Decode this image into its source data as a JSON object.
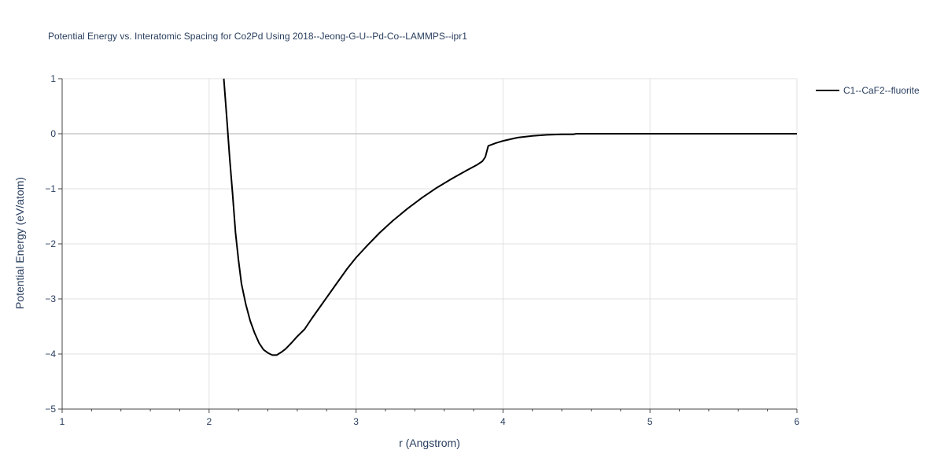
{
  "chart_data": {
    "type": "line",
    "title": "Potential Energy vs. Interatomic Spacing for Co2Pd Using 2018--Jeong-G-U--Pd-Co--LAMMPS--ipr1",
    "xlabel": "r (Angstrom)",
    "ylabel": "Potential Energy (eV/atom)",
    "xlim": [
      1,
      6
    ],
    "ylim": [
      -5,
      1
    ],
    "x_ticks": [
      "1",
      "2",
      "3",
      "4",
      "5",
      "6"
    ],
    "y_ticks": [
      "1",
      "0",
      "−1",
      "−2",
      "−3",
      "−4",
      "−5"
    ],
    "grid": true,
    "legend_position": "top-right",
    "series": [
      {
        "name": "C1--CaF2--fluorite",
        "color": "#000000",
        "x": [
          2.1,
          2.12,
          2.14,
          2.16,
          2.18,
          2.2,
          2.22,
          2.25,
          2.28,
          2.31,
          2.34,
          2.37,
          2.4,
          2.43,
          2.46,
          2.49,
          2.52,
          2.56,
          2.6,
          2.65,
          2.7,
          2.78,
          2.86,
          2.94,
          3.0,
          3.08,
          3.16,
          3.25,
          3.35,
          3.45,
          3.55,
          3.65,
          3.75,
          3.82,
          3.86,
          3.88,
          3.9,
          3.95,
          4.0,
          4.05,
          4.1,
          4.2,
          4.3,
          4.4,
          4.48,
          4.5,
          4.6,
          4.8,
          5.0,
          5.5,
          6.0
        ],
        "y": [
          1.0,
          0.3,
          -0.45,
          -1.1,
          -1.8,
          -2.3,
          -2.72,
          -3.1,
          -3.4,
          -3.62,
          -3.8,
          -3.92,
          -3.98,
          -4.02,
          -4.02,
          -3.97,
          -3.91,
          -3.8,
          -3.68,
          -3.55,
          -3.35,
          -3.05,
          -2.75,
          -2.45,
          -2.25,
          -2.02,
          -1.8,
          -1.58,
          -1.36,
          -1.16,
          -0.98,
          -0.82,
          -0.67,
          -0.57,
          -0.5,
          -0.42,
          -0.22,
          -0.17,
          -0.13,
          -0.1,
          -0.07,
          -0.04,
          -0.02,
          -0.01,
          -0.01,
          0.0,
          0.0,
          0.0,
          0.0,
          0.0,
          0.0
        ]
      }
    ]
  }
}
